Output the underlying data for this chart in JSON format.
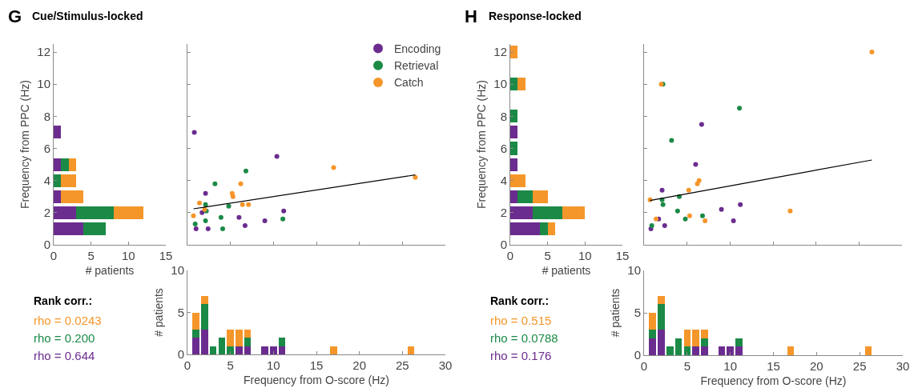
{
  "chart_data": [
    {
      "type": "bar",
      "orientation": "horizontal",
      "stacked": true,
      "title": "Cue/Stimulus-locked",
      "xlabel": "# patients",
      "ylabel": "Frequency from PPC (Hz)",
      "annotations": [
        "G",
        "Rank corr.:",
        "rho = 0.0243",
        "rho = 0.200",
        "rho = 0.644"
      ],
      "x": [
        1,
        2,
        3,
        4,
        5,
        6,
        7
      ],
      "xlim": [
        0,
        15
      ],
      "xticks": [
        0,
        5,
        10,
        15
      ],
      "ylim": [
        0,
        12.5
      ],
      "yticks": [
        0,
        2,
        4,
        6,
        8,
        10,
        12
      ],
      "series": [
        {
          "color": "#6b2c8f",
          "values": [
            4,
            3,
            1,
            0,
            1,
            0,
            1
          ]
        },
        {
          "color": "#1b8a47",
          "values": [
            3,
            5,
            0,
            1,
            1,
            0,
            0
          ]
        },
        {
          "color": "#f5962a",
          "values": [
            0,
            4,
            3,
            2,
            1,
            0,
            0
          ]
        }
      ]
    },
    {
      "type": "scatter",
      "marker": "circle",
      "legend": "top right",
      "xlim": [
        0,
        30
      ],
      "xticks": [
        0,
        5,
        10,
        15,
        20,
        25,
        30
      ],
      "ylim": [
        0,
        12.5
      ],
      "yticks": [
        0,
        2,
        4,
        6,
        8,
        10,
        12
      ],
      "tick_labels": false,
      "series": [
        {
          "name": "Encoding",
          "color": "#6b2c8f",
          "x": [
            0.8,
            10.4,
            2.1,
            1.7,
            1.0,
            2.4,
            6.0,
            6.7,
            9.0,
            11.2
          ],
          "values": [
            7.0,
            5.5,
            3.2,
            2.0,
            1.0,
            1.0,
            1.7,
            1.2,
            1.5,
            2.1
          ]
        },
        {
          "name": "Retrieval",
          "color": "#1b8a47",
          "x": [
            6.8,
            3.2,
            2.1,
            2.2,
            4.8,
            0.9,
            2.1,
            3.9,
            4.1,
            11.1
          ],
          "values": [
            4.6,
            3.8,
            2.5,
            2.1,
            2.4,
            1.3,
            1.5,
            1.7,
            1.0,
            1.6
          ]
        },
        {
          "name": "Catch",
          "color": "#f5962a",
          "x": [
            17.0,
            26.5,
            6.2,
            5.2,
            5.3,
            6.4,
            7.1,
            1.4,
            2.0,
            0.7
          ],
          "values": [
            4.8,
            4.2,
            3.8,
            3.2,
            3.0,
            2.5,
            2.5,
            2.6,
            2.2,
            1.8
          ]
        },
        {
          "type": "line",
          "marker": "none",
          "color": "#000000",
          "x": [
            0.7,
            26.5
          ],
          "values": [
            2.24,
            4.35
          ]
        }
      ]
    },
    {
      "type": "bar",
      "stacked": true,
      "xlabel": "Frequency from O-score (Hz)",
      "ylabel": "# patients",
      "x": [
        1,
        2,
        3,
        4,
        5,
        6,
        7,
        9,
        10,
        11,
        17,
        26
      ],
      "xlim": [
        0,
        30
      ],
      "xticks": [
        0,
        5,
        10,
        15,
        20,
        25,
        30
      ],
      "ylim": [
        0,
        10
      ],
      "yticks": [
        0,
        5,
        10
      ],
      "series": [
        {
          "color": "#6b2c8f",
          "values": [
            2,
            3,
            0,
            0,
            0,
            1,
            1,
            1,
            1,
            1,
            0,
            0
          ]
        },
        {
          "color": "#1b8a47",
          "values": [
            1,
            3,
            1,
            2,
            1,
            0,
            1,
            0,
            0,
            1,
            0,
            0
          ]
        },
        {
          "color": "#f5962a",
          "values": [
            2,
            1,
            0,
            0,
            2,
            2,
            1,
            0,
            0,
            0,
            1,
            1
          ]
        }
      ]
    },
    {
      "type": "bar",
      "orientation": "horizontal",
      "stacked": true,
      "title": "Response-locked",
      "xlabel": "# patients",
      "ylabel": "Frequency from PPC (Hz)",
      "annotations": [
        "H",
        "Rank corr.:",
        "rho = 0.515",
        "rho = 0.0788",
        "rho = 0.176"
      ],
      "x": [
        1,
        2,
        3,
        4,
        5,
        6,
        7,
        8,
        10,
        12
      ],
      "xlim": [
        0,
        15
      ],
      "xticks": [
        0,
        5,
        10,
        15
      ],
      "ylim": [
        0,
        12.5
      ],
      "yticks": [
        0,
        2,
        4,
        6,
        8,
        10,
        12
      ],
      "series": [
        {
          "color": "#6b2c8f",
          "values": [
            4,
            3,
            1,
            0,
            1,
            0,
            1,
            0,
            0,
            0
          ]
        },
        {
          "color": "#1b8a47",
          "values": [
            1,
            4,
            2,
            0,
            0,
            1,
            0,
            1,
            1,
            0
          ]
        },
        {
          "color": "#f5962a",
          "values": [
            1,
            3,
            2,
            2,
            0,
            0,
            0,
            0,
            1,
            1
          ]
        }
      ]
    },
    {
      "type": "scatter",
      "marker": "circle",
      "xlim": [
        0,
        30
      ],
      "xticks": [
        0,
        5,
        10,
        15,
        20,
        25,
        30
      ],
      "ylim": [
        0,
        12.5
      ],
      "yticks": [
        0,
        2,
        4,
        6,
        8,
        10,
        12
      ],
      "tick_labels": false,
      "series": [
        {
          "color": "#6b2c8f",
          "x": [
            6.7,
            6.0,
            2.1,
            1.7,
            0.8,
            2.4,
            9.0,
            10.4,
            11.2
          ],
          "values": [
            7.5,
            5.0,
            3.4,
            1.6,
            1.0,
            1.2,
            2.2,
            1.5,
            2.5
          ]
        },
        {
          "color": "#1b8a47",
          "x": [
            11.1,
            3.2,
            2.2,
            2.1,
            2.2,
            4.1,
            3.9,
            4.8,
            6.8,
            0.9
          ],
          "values": [
            8.5,
            6.5,
            10.0,
            2.8,
            2.5,
            3.0,
            2.1,
            1.6,
            1.8,
            1.2
          ]
        },
        {
          "color": "#f5962a",
          "x": [
            26.5,
            2.0,
            6.4,
            6.2,
            5.2,
            0.7,
            1.4,
            5.3,
            7.1,
            17.0
          ],
          "values": [
            12.0,
            10.0,
            4.0,
            3.8,
            3.4,
            2.8,
            1.6,
            1.8,
            1.5,
            2.1
          ]
        },
        {
          "type": "line",
          "marker": "none",
          "color": "#000000",
          "x": [
            0.7,
            26.5
          ],
          "values": [
            2.76,
            5.28
          ]
        }
      ]
    },
    {
      "type": "bar",
      "stacked": true,
      "xlabel": "Frequency from O-score (Hz)",
      "ylabel": "# patients",
      "x": [
        1,
        2,
        3,
        4,
        5,
        6,
        7,
        9,
        10,
        11,
        17,
        26
      ],
      "xlim": [
        0,
        30
      ],
      "xticks": [
        0,
        5,
        10,
        15,
        20,
        25,
        30
      ],
      "ylim": [
        0,
        10
      ],
      "yticks": [
        0,
        5,
        10
      ],
      "series": [
        {
          "color": "#6b2c8f",
          "values": [
            2,
            3,
            0,
            0,
            0,
            1,
            1,
            1,
            1,
            1,
            0,
            0
          ]
        },
        {
          "color": "#1b8a47",
          "values": [
            1,
            3,
            1,
            2,
            1,
            0,
            1,
            0,
            0,
            1,
            0,
            0
          ]
        },
        {
          "color": "#f5962a",
          "values": [
            2,
            1,
            0,
            0,
            2,
            2,
            1,
            0,
            0,
            0,
            1,
            1
          ]
        }
      ]
    }
  ]
}
